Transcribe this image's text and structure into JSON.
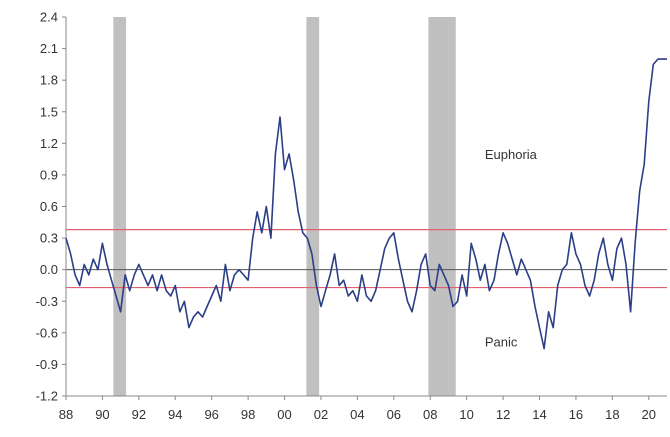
{
  "chart_data": {
    "type": "line",
    "title": "",
    "xlabel": "",
    "ylabel": "",
    "xlim": [
      1988,
      2021
    ],
    "ylim": [
      -1.2,
      2.4
    ],
    "y_ticks": [
      2.4,
      2.1,
      1.8,
      1.5,
      1.2,
      0.9,
      0.6,
      0.3,
      0.0,
      -0.3,
      -0.6,
      -0.9,
      -1.2
    ],
    "y_tick_labels": [
      "2.4",
      "2.1",
      "1.8",
      "1.5",
      "1.2",
      "0.9",
      "0.6",
      "0.3",
      "0.0",
      "-0.3",
      "-0.6",
      "-0.9",
      "-1.2"
    ],
    "x_ticks": [
      1988,
      1990,
      1992,
      1994,
      1996,
      1998,
      2000,
      2002,
      2004,
      2006,
      2008,
      2010,
      2012,
      2014,
      2016,
      2018,
      2020
    ],
    "x_tick_labels": [
      "88",
      "90",
      "92",
      "94",
      "96",
      "98",
      "00",
      "02",
      "04",
      "06",
      "08",
      "10",
      "12",
      "14",
      "16",
      "18",
      "20"
    ],
    "grid": false,
    "recession_bands": [
      {
        "start": 1990.6,
        "end": 1991.3
      },
      {
        "start": 2001.2,
        "end": 2001.9
      },
      {
        "start": 2007.9,
        "end": 2009.4
      }
    ],
    "threshold_lines": [
      {
        "value": 0.38,
        "color": "#e06070"
      },
      {
        "value": -0.17,
        "color": "#e06070"
      }
    ],
    "zero_line": {
      "value": 0.0,
      "color": "#555555"
    },
    "annotations": [
      {
        "text": "Euphoria",
        "x": 2011.0,
        "y": 1.05
      },
      {
        "text": "Panic",
        "x": 2011.0,
        "y": -0.73
      }
    ],
    "series": [
      {
        "color": "#2b3f87",
        "x": [
          1988.0,
          1988.25,
          1988.5,
          1988.75,
          1989.0,
          1989.25,
          1989.5,
          1989.75,
          1990.0,
          1990.25,
          1990.5,
          1990.75,
          1991.0,
          1991.25,
          1991.5,
          1991.75,
          1992.0,
          1992.25,
          1992.5,
          1992.75,
          1993.0,
          1993.25,
          1993.5,
          1993.75,
          1994.0,
          1994.25,
          1994.5,
          1994.75,
          1995.0,
          1995.25,
          1995.5,
          1995.75,
          1996.0,
          1996.25,
          1996.5,
          1996.75,
          1997.0,
          1997.25,
          1997.5,
          1997.75,
          1998.0,
          1998.25,
          1998.5,
          1998.75,
          1999.0,
          1999.25,
          1999.5,
          1999.75,
          2000.0,
          2000.25,
          2000.5,
          2000.75,
          2001.0,
          2001.25,
          2001.5,
          2001.75,
          2002.0,
          2002.25,
          2002.5,
          2002.75,
          2003.0,
          2003.25,
          2003.5,
          2003.75,
          2004.0,
          2004.25,
          2004.5,
          2004.75,
          2005.0,
          2005.25,
          2005.5,
          2005.75,
          2006.0,
          2006.25,
          2006.5,
          2006.75,
          2007.0,
          2007.25,
          2007.5,
          2007.75,
          2008.0,
          2008.25,
          2008.5,
          2008.75,
          2009.0,
          2009.25,
          2009.5,
          2009.75,
          2010.0,
          2010.25,
          2010.5,
          2010.75,
          2011.0,
          2011.25,
          2011.5,
          2011.75,
          2012.0,
          2012.25,
          2012.5,
          2012.75,
          2013.0,
          2013.25,
          2013.5,
          2013.75,
          2014.0,
          2014.25,
          2014.5,
          2014.75,
          2015.0,
          2015.25,
          2015.5,
          2015.75,
          2016.0,
          2016.25,
          2016.5,
          2016.75,
          2017.0,
          2017.25,
          2017.5,
          2017.75,
          2018.0,
          2018.25,
          2018.5,
          2018.75,
          2019.0,
          2019.25,
          2019.5,
          2019.75,
          2020.0,
          2020.25,
          2020.5,
          2020.75,
          2021.0
        ],
        "values": [
          0.3,
          0.15,
          -0.05,
          -0.15,
          0.05,
          -0.05,
          0.1,
          0.0,
          0.25,
          0.05,
          -0.1,
          -0.25,
          -0.4,
          -0.05,
          -0.2,
          -0.05,
          0.05,
          -0.05,
          -0.15,
          -0.05,
          -0.2,
          -0.05,
          -0.2,
          -0.25,
          -0.15,
          -0.4,
          -0.3,
          -0.55,
          -0.45,
          -0.4,
          -0.45,
          -0.35,
          -0.25,
          -0.15,
          -0.3,
          0.05,
          -0.2,
          -0.05,
          0.0,
          -0.05,
          -0.1,
          0.3,
          0.55,
          0.35,
          0.6,
          0.3,
          1.1,
          1.45,
          0.95,
          1.1,
          0.85,
          0.55,
          0.35,
          0.3,
          0.15,
          -0.15,
          -0.35,
          -0.2,
          -0.05,
          0.15,
          -0.15,
          -0.1,
          -0.25,
          -0.2,
          -0.3,
          -0.05,
          -0.25,
          -0.3,
          -0.2,
          0.0,
          0.2,
          0.3,
          0.35,
          0.1,
          -0.1,
          -0.3,
          -0.4,
          -0.2,
          0.05,
          0.15,
          -0.15,
          -0.2,
          0.05,
          -0.05,
          -0.15,
          -0.35,
          -0.3,
          -0.05,
          -0.25,
          0.25,
          0.1,
          -0.1,
          0.05,
          -0.2,
          -0.1,
          0.15,
          0.35,
          0.25,
          0.1,
          -0.05,
          0.1,
          0.0,
          -0.1,
          -0.35,
          -0.55,
          -0.75,
          -0.4,
          -0.55,
          -0.15,
          0.0,
          0.05,
          0.35,
          0.15,
          0.05,
          -0.15,
          -0.25,
          -0.1,
          0.15,
          0.3,
          0.05,
          -0.1,
          0.2,
          0.3,
          0.05,
          -0.4,
          0.25,
          0.75,
          1.0,
          1.6,
          1.95,
          2.0,
          2.0,
          2.0
        ]
      }
    ]
  }
}
